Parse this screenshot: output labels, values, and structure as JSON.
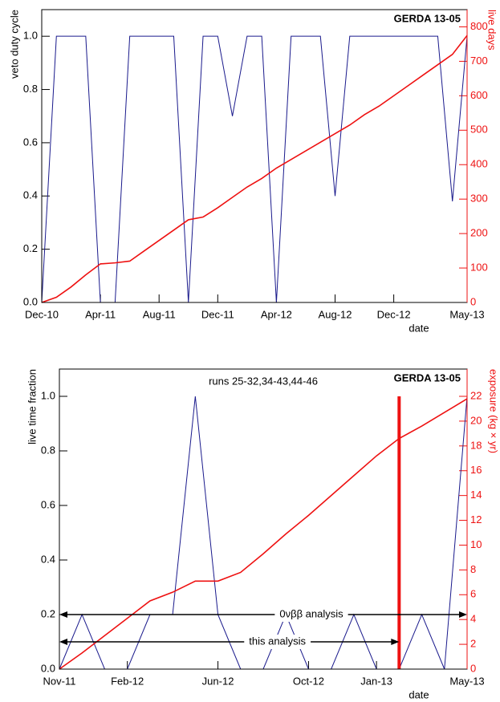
{
  "chart_data": [
    {
      "type": "line",
      "annotation": "GERDA 13-05",
      "xlabel": "date",
      "ylabel": "veto duty cycle",
      "y2label": "live days",
      "x": [
        "2010-12",
        "2011-01",
        "2011-02",
        "2011-03",
        "2011-04",
        "2011-05",
        "2011-06",
        "2011-07",
        "2011-08",
        "2011-09",
        "2011-10",
        "2011-11",
        "2011-12",
        "2012-01",
        "2012-02",
        "2012-03",
        "2012-04",
        "2012-05",
        "2012-06",
        "2012-07",
        "2012-08",
        "2012-09",
        "2012-10",
        "2012-11",
        "2012-12",
        "2013-01",
        "2013-02",
        "2013-03",
        "2013-04",
        "2013-05"
      ],
      "xlim": [
        "2010-12",
        "2013-05"
      ],
      "xticks": [
        {
          "value": "2010-12",
          "label": "Dec-10"
        },
        {
          "value": "2011-04",
          "label": "Apr-11"
        },
        {
          "value": "2011-08",
          "label": "Aug-11"
        },
        {
          "value": "2011-12",
          "label": "Dec-11"
        },
        {
          "value": "2012-04",
          "label": "Apr-12"
        },
        {
          "value": "2012-08",
          "label": "Aug-12"
        },
        {
          "value": "2012-12",
          "label": "Dec-12"
        },
        {
          "value": "2013-05",
          "label": "May-13"
        }
      ],
      "ylim": [
        0,
        1.1
      ],
      "yticks": [
        {
          "value": 0,
          "label": "0.0"
        },
        0.2,
        0.4,
        0.6,
        0.8,
        {
          "value": 1,
          "label": "1.0"
        }
      ],
      "y2lim": [
        0,
        850
      ],
      "y2ticks": [
        0,
        100,
        200,
        300,
        400,
        500,
        600,
        700,
        800
      ],
      "series": [
        {
          "color": "#1a1a8c",
          "values": [
            0,
            1,
            1,
            1,
            0,
            0,
            1,
            1,
            1,
            1,
            0,
            1,
            1,
            0.7,
            1,
            1,
            0,
            1,
            1,
            1,
            0.4,
            1,
            1,
            1,
            1,
            1,
            1,
            1,
            0.38,
            1
          ]
        },
        {
          "color": "#ee1111",
          "axis": "y2",
          "values": [
            0,
            15,
            45,
            80,
            112,
            115,
            120,
            150,
            180,
            210,
            240,
            248,
            275,
            305,
            335,
            360,
            390,
            415,
            440,
            465,
            490,
            515,
            545,
            570,
            600,
            630,
            660,
            690,
            720,
            775
          ]
        }
      ]
    },
    {
      "type": "line",
      "annotation": "GERDA 13-05",
      "subtitle": "runs 25-32,34-43,44-46",
      "xlabel": "date",
      "ylabel": "live time fraction",
      "y2label": "exposure (kg × yr)",
      "x": [
        "2011-11",
        "2011-12",
        "2012-01",
        "2012-02",
        "2012-03",
        "2012-04",
        "2012-05",
        "2012-06",
        "2012-07",
        "2012-08",
        "2012-09",
        "2012-10",
        "2012-11",
        "2012-12",
        "2013-01",
        "2013-02",
        "2013-03",
        "2013-04",
        "2013-05"
      ],
      "xlim": [
        "2011-11",
        "2013-05"
      ],
      "xticks": [
        {
          "value": "2011-11",
          "label": "Nov-11"
        },
        {
          "value": "2012-02",
          "label": "Feb-12"
        },
        {
          "value": "2012-06",
          "label": "Jun-12"
        },
        {
          "value": "2012-10",
          "label": "Oct-12"
        },
        {
          "value": "2013-01",
          "label": "Jan-13"
        },
        {
          "value": "2013-05",
          "label": "May-13"
        }
      ],
      "ylim": [
        0,
        1.1
      ],
      "yticks": [
        {
          "value": 0,
          "label": "0.0"
        },
        0.2,
        0.4,
        0.6,
        0.8,
        {
          "value": 1,
          "label": "1.0"
        }
      ],
      "y2lim": [
        0,
        24.2
      ],
      "y2ticks": [
        0,
        2,
        4,
        6,
        8,
        10,
        12,
        14,
        16,
        18,
        20,
        22
      ],
      "cut": "2013-02",
      "markers": [
        {
          "label": "0νββ analysis",
          "from": "2011-11",
          "to": "2013-05",
          "y": 0.2
        },
        {
          "label": "this analysis",
          "from": "2011-11",
          "to": "2013-02",
          "y": 0.1
        }
      ],
      "series": [
        {
          "color": "#1a1a8c",
          "values": [
            0,
            0.2,
            0,
            0,
            0.2,
            0.2,
            1,
            0.2,
            0,
            0,
            0.2,
            0,
            0,
            0.2,
            0,
            0,
            0.2,
            0,
            1
          ]
        },
        {
          "color": "#ee1111",
          "axis": "y2",
          "values": [
            0,
            1.3,
            2.7,
            4.1,
            5.5,
            6.2,
            7.1,
            7.1,
            7.8,
            9.3,
            10.9,
            12.4,
            14,
            15.6,
            17.2,
            18.6,
            19.6,
            20.7,
            21.8
          ]
        }
      ]
    }
  ]
}
